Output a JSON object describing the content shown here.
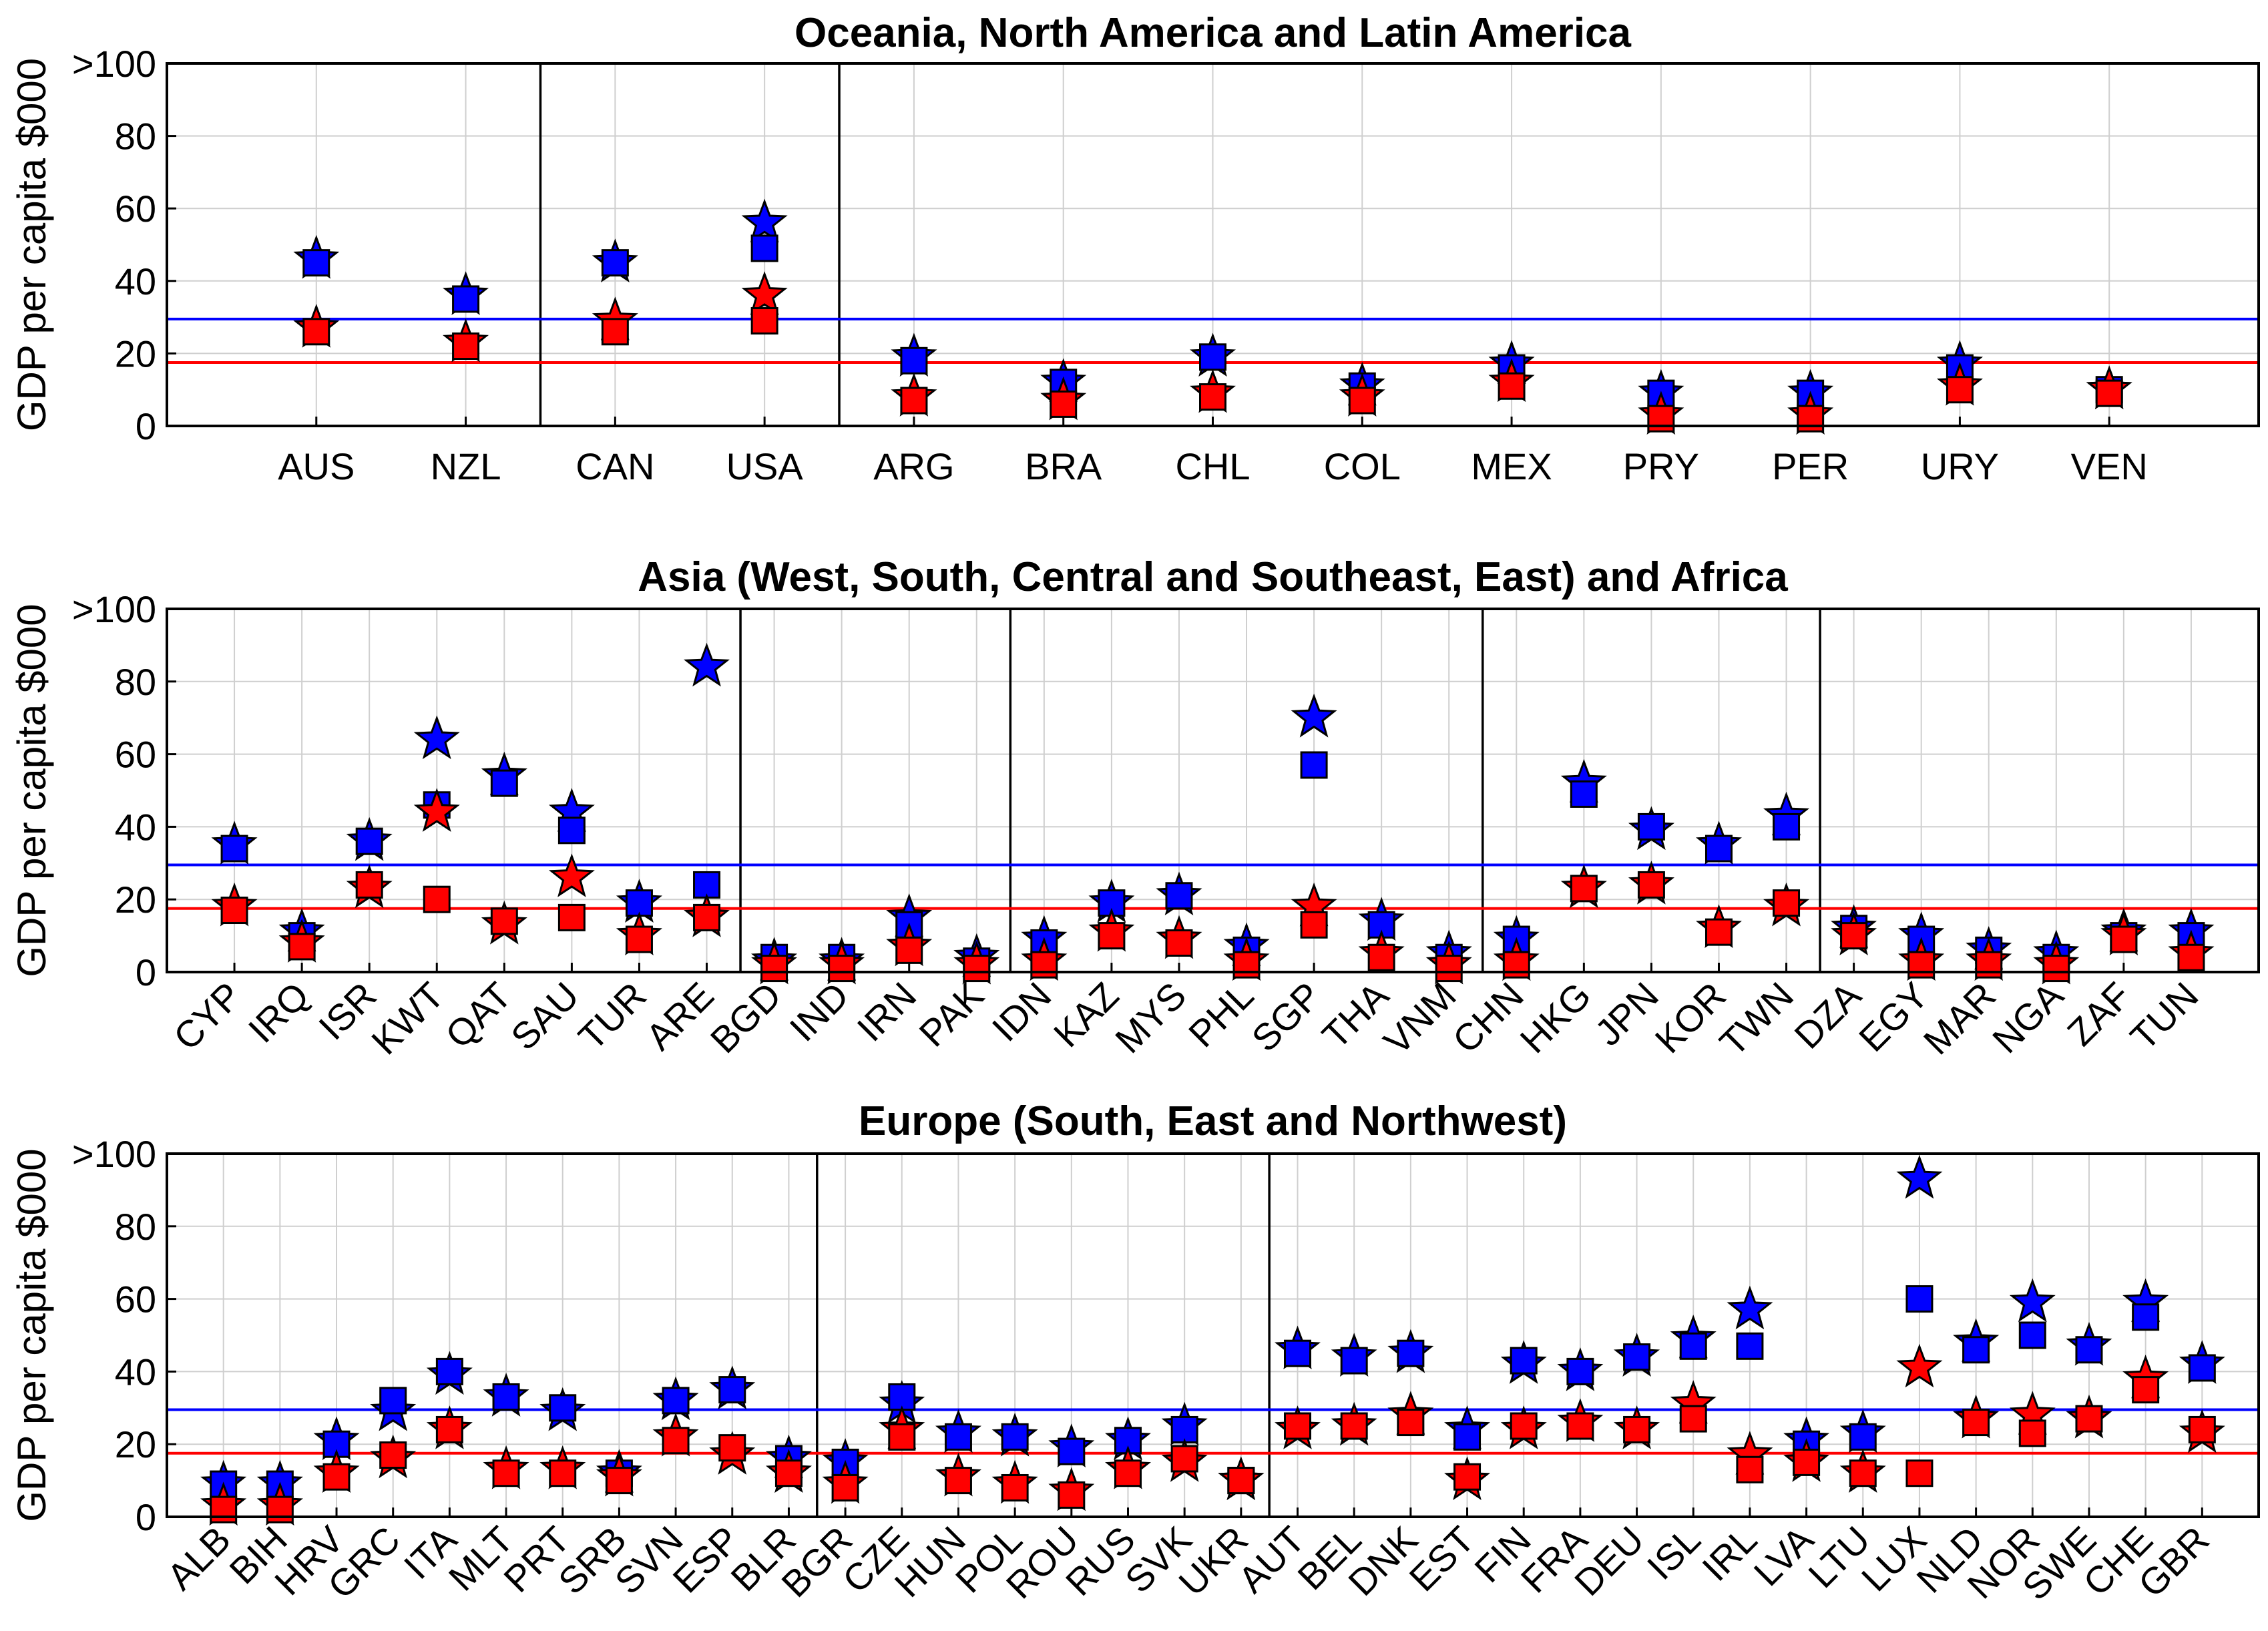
{
  "colors": {
    "blue": "#0000ff",
    "red": "#ff0000",
    "grid": "#cfcfcf",
    "frame": "#000000"
  },
  "legend_semantics": {
    "square_marker": "square",
    "star_marker": "star",
    "blue_series": "blue",
    "red_series": "red"
  },
  "chart_data": [
    {
      "type": "scatter",
      "title": "Oceania, North America and Latin America",
      "ylabel": "GDP per capita $000",
      "ylim": [
        0,
        100
      ],
      "yticks": [
        "0",
        "20",
        "40",
        "60",
        "80",
        ">100"
      ],
      "x_tick_rotation": 0,
      "categories": [
        "AUS",
        "NZL",
        "CAN",
        "USA",
        "ARG",
        "BRA",
        "CHL",
        "COL",
        "MEX",
        "PRY",
        "PER",
        "URY",
        "VEN"
      ],
      "group_separators_after_index": [
        1,
        3
      ],
      "reference_lines": {
        "blue": 29.5,
        "red": 17.5
      },
      "series": [
        {
          "name": "blue-square",
          "color": "blue",
          "marker": "square",
          "values": [
            45,
            35,
            45,
            49,
            18,
            12,
            19,
            11,
            16,
            9,
            9,
            16,
            10
          ]
        },
        {
          "name": "blue-star",
          "color": "blue",
          "marker": "star",
          "values": [
            46,
            36,
            45,
            56,
            19,
            12,
            19,
            11,
            17,
            9,
            9,
            17,
            10
          ]
        },
        {
          "name": "red-square",
          "color": "red",
          "marker": "square",
          "values": [
            26,
            22,
            26,
            29,
            7,
            6,
            8,
            7,
            11,
            2,
            2,
            10,
            9
          ]
        },
        {
          "name": "red-star",
          "color": "red",
          "marker": "star",
          "values": [
            27,
            23,
            29,
            36,
            8,
            7,
            9,
            8,
            12,
            3,
            3,
            11,
            10
          ]
        }
      ]
    },
    {
      "type": "scatter",
      "title": "Asia (West, South, Central and Southeast, East) and Africa",
      "ylabel": "GDP per capita $000",
      "ylim": [
        0,
        100
      ],
      "yticks": [
        "0",
        "20",
        "40",
        "60",
        "80",
        ">100"
      ],
      "x_tick_rotation": -45,
      "categories": [
        "CYP",
        "IRQ",
        "ISR",
        "KWT",
        "QAT",
        "SAU",
        "TUR",
        "ARE",
        "BGD",
        "IND",
        "IRN",
        "PAK",
        "IDN",
        "KAZ",
        "MYS",
        "PHL",
        "SGP",
        "THA",
        "VNM",
        "CHN",
        "HKG",
        "JPN",
        "KOR",
        "TWN",
        "DZA",
        "EGY",
        "MAR",
        "NGA",
        "ZAF",
        "TUN"
      ],
      "group_separators_after_index": [
        7,
        11,
        18,
        23
      ],
      "reference_lines": {
        "blue": 29.5,
        "red": 17.5
      },
      "series": [
        {
          "name": "blue-square",
          "color": "blue",
          "marker": "square",
          "values": [
            34,
            10,
            36,
            46,
            52,
            39,
            19,
            24,
            4,
            4,
            13,
            3,
            8,
            19,
            21,
            6,
            57,
            13,
            4,
            9,
            49,
            40,
            34,
            40,
            12,
            9,
            6,
            4,
            10,
            10
          ]
        },
        {
          "name": "blue-star",
          "color": "blue",
          "marker": "star",
          "values": [
            35,
            11,
            36,
            64,
            54,
            44,
            19,
            84,
            3,
            3,
            15,
            4,
            9,
            19,
            21,
            7,
            70,
            14,
            5,
            9,
            52,
            39,
            35,
            43,
            12,
            10,
            6,
            5,
            11,
            11
          ]
        },
        {
          "name": "red-square",
          "color": "red",
          "marker": "square",
          "values": [
            17,
            7,
            24,
            20,
            14,
            15,
            9,
            15,
            1,
            1,
            6,
            1,
            2,
            10,
            8,
            2,
            13,
            4,
            1,
            2,
            23,
            24,
            11,
            19,
            10,
            2,
            2,
            1,
            9,
            4
          ]
        },
        {
          "name": "red-star",
          "color": "red",
          "marker": "star",
          "values": [
            18,
            8,
            23,
            44,
            13,
            26,
            10,
            15,
            2,
            2,
            7,
            2,
            3,
            11,
            9,
            3,
            18,
            5,
            2,
            3,
            23,
            24,
            12,
            18,
            10,
            3,
            3,
            2,
            10,
            5
          ]
        }
      ]
    },
    {
      "type": "scatter",
      "title": "Europe (South, East and Northwest)",
      "ylabel": "GDP per capita $000",
      "ylim": [
        0,
        100
      ],
      "yticks": [
        "0",
        "20",
        "40",
        "60",
        "80",
        ">100"
      ],
      "x_tick_rotation": -45,
      "categories": [
        "ALB",
        "BIH",
        "HRV",
        "GRC",
        "ITA",
        "MLT",
        "PRT",
        "SRB",
        "SVN",
        "ESP",
        "BLR",
        "BGR",
        "CZE",
        "HUN",
        "POL",
        "ROU",
        "RUS",
        "SVK",
        "UKR",
        "AUT",
        "BEL",
        "DNK",
        "EST",
        "FIN",
        "FRA",
        "DEU",
        "ISL",
        "IRL",
        "LVA",
        "LTU",
        "LUX",
        "NLD",
        "NOR",
        "SWE",
        "CHE",
        "GBR"
      ],
      "group_separators_after_index": [
        10,
        18
      ],
      "reference_lines": {
        "blue": 29.5,
        "red": 17.5
      },
      "series": [
        {
          "name": "blue-square",
          "color": "blue",
          "marker": "square",
          "values": [
            9,
            9,
            20,
            32,
            40,
            33,
            30,
            12,
            32,
            35,
            16,
            15,
            33,
            22,
            22,
            18,
            21,
            24,
            10,
            45,
            43,
            45,
            22,
            43,
            40,
            44,
            47,
            47,
            20,
            22,
            60,
            46,
            50,
            46,
            55,
            41
          ]
        },
        {
          "name": "blue-star",
          "color": "blue",
          "marker": "star",
          "values": [
            9,
            9,
            21,
            29,
            39,
            33,
            29,
            12,
            32,
            35,
            16,
            15,
            31,
            23,
            22,
            19,
            21,
            25,
            10,
            46,
            44,
            45,
            24,
            42,
            40,
            44,
            49,
            57,
            21,
            23,
            93,
            48,
            59,
            47,
            59,
            42
          ]
        },
        {
          "name": "red-square",
          "color": "red",
          "marker": "square",
          "values": [
            2,
            2,
            11,
            17,
            24,
            12,
            12,
            10,
            21,
            19,
            12,
            8,
            22,
            10,
            8,
            6,
            12,
            16,
            10,
            25,
            25,
            26,
            11,
            25,
            25,
            24,
            27,
            13,
            15,
            12,
            12,
            26,
            23,
            27,
            35,
            24
          ]
        },
        {
          "name": "red-star",
          "color": "red",
          "marker": "star",
          "values": [
            3,
            3,
            12,
            16,
            24,
            13,
            13,
            11,
            22,
            17,
            12,
            9,
            24,
            11,
            9,
            7,
            13,
            15,
            10,
            24,
            25,
            28,
            10,
            24,
            26,
            24,
            31,
            17,
            15,
            12,
            41,
            27,
            28,
            27,
            38,
            23
          ]
        }
      ]
    }
  ]
}
